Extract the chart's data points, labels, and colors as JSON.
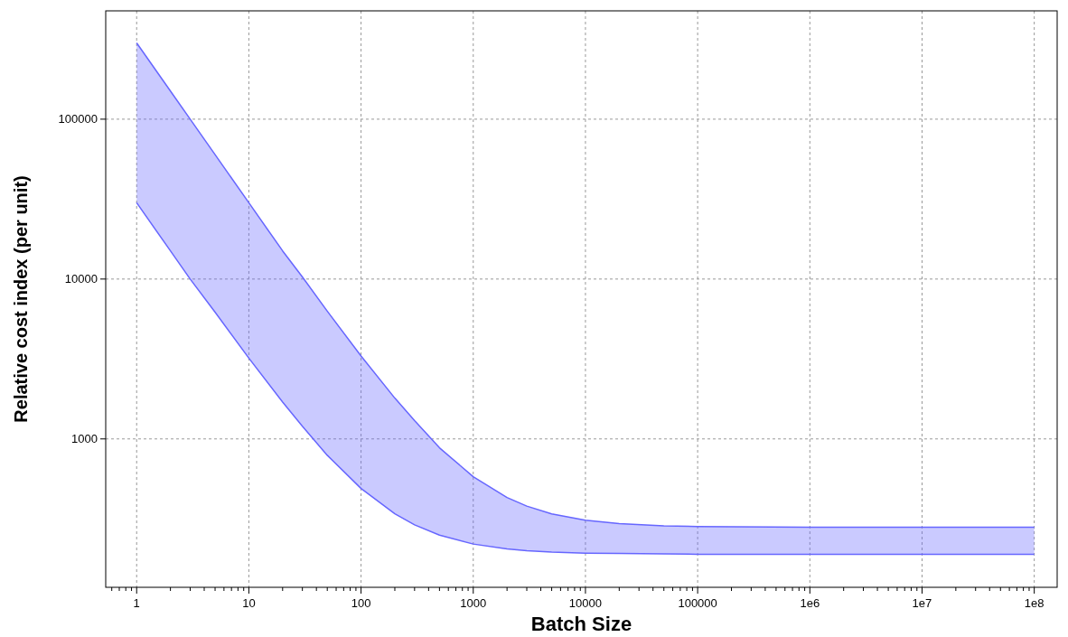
{
  "chart_data": {
    "type": "line",
    "xlabel": "Batch Size",
    "ylabel": "Relative cost index (per unit)",
    "log": "xy",
    "grid": true,
    "x": [
      1,
      2,
      3,
      5,
      10,
      20,
      30,
      50,
      100,
      200,
      300,
      500,
      1000,
      2000,
      3000,
      5000,
      10000,
      20000,
      50000,
      100000,
      1000000,
      10000000,
      100000000
    ],
    "series": [
      {
        "color": "#6666ff",
        "values": [
          300000,
          150000,
          100000,
          60000,
          30000,
          15000,
          10300,
          6300,
          3300,
          1800,
          1300,
          880,
          580,
          430,
          380,
          340,
          310,
          295,
          286,
          283,
          280,
          280,
          280
        ],
        "upper": [
          300000,
          150000,
          100000,
          60000,
          30000,
          15000,
          10300,
          6300,
          3300,
          1800,
          1300,
          880,
          580,
          430,
          380,
          340,
          310,
          295,
          286,
          283,
          280,
          280,
          280
        ],
        "lower": [
          30000,
          15000,
          10000,
          6200,
          3200,
          1700,
          1200,
          790,
          490,
          340,
          290,
          250,
          220,
          205,
          200,
          196,
          193,
          192,
          191,
          190,
          190,
          190,
          190
        ]
      },
      {
        "color": "#6666ff",
        "values": [
          30000,
          15000,
          10000,
          6200,
          3200,
          1700,
          1200,
          790,
          490,
          340,
          290,
          250,
          220,
          205,
          200,
          196,
          193,
          192,
          191,
          190,
          190,
          190,
          190
        ]
      }
    ],
    "xlim": [
      0.53,
      160000000
    ],
    "ylim": [
      118,
      476000
    ],
    "xticks": [
      {
        "value": 0.6,
        "label": null
      },
      {
        "value": 0.7,
        "label": null
      },
      {
        "value": 0.8,
        "label": null
      },
      {
        "value": 0.9,
        "label": null
      },
      1,
      {
        "value": 2,
        "label": null
      },
      {
        "value": 3,
        "label": null
      },
      {
        "value": 4,
        "label": null
      },
      {
        "value": 5,
        "label": null
      },
      {
        "value": 6,
        "label": null
      },
      {
        "value": 7,
        "label": null
      },
      {
        "value": 8,
        "label": null
      },
      {
        "value": 9,
        "label": null
      },
      10,
      {
        "value": 20,
        "label": null
      },
      {
        "value": 30,
        "label": null
      },
      {
        "value": 40,
        "label": null
      },
      {
        "value": 50,
        "label": null
      },
      {
        "value": 60,
        "label": null
      },
      {
        "value": 70,
        "label": null
      },
      {
        "value": 80,
        "label": null
      },
      {
        "value": 90,
        "label": null
      },
      100,
      {
        "value": 200,
        "label": null
      },
      {
        "value": 300,
        "label": null
      },
      {
        "value": 400,
        "label": null
      },
      {
        "value": 500,
        "label": null
      },
      {
        "value": 600,
        "label": null
      },
      {
        "value": 700,
        "label": null
      },
      {
        "value": 800,
        "label": null
      },
      {
        "value": 900,
        "label": null
      },
      1000,
      {
        "value": 2000,
        "label": null
      },
      {
        "value": 3000,
        "label": null
      },
      {
        "value": 4000,
        "label": null
      },
      {
        "value": 5000,
        "label": null
      },
      {
        "value": 6000,
        "label": null
      },
      {
        "value": 7000,
        "label": null
      },
      {
        "value": 8000,
        "label": null
      },
      {
        "value": 9000,
        "label": null
      },
      10000,
      {
        "value": 20000,
        "label": null
      },
      {
        "value": 30000,
        "label": null
      },
      {
        "value": 40000,
        "label": null
      },
      {
        "value": 50000,
        "label": null
      },
      {
        "value": 60000,
        "label": null
      },
      {
        "value": 70000,
        "label": null
      },
      {
        "value": 80000,
        "label": null
      },
      {
        "value": 90000,
        "label": null
      },
      100000,
      {
        "value": 200000,
        "label": null
      },
      {
        "value": 300000,
        "label": null
      },
      {
        "value": 400000,
        "label": null
      },
      {
        "value": 500000,
        "label": null
      },
      {
        "value": 600000,
        "label": null
      },
      {
        "value": 700000,
        "label": null
      },
      {
        "value": 800000,
        "label": null
      },
      {
        "value": 900000,
        "label": null
      },
      {
        "value": 1000000,
        "label": "1e6"
      },
      {
        "value": 2000000,
        "label": null
      },
      {
        "value": 3000000,
        "label": null
      },
      {
        "value": 4000000,
        "label": null
      },
      {
        "value": 5000000,
        "label": null
      },
      {
        "value": 6000000,
        "label": null
      },
      {
        "value": 7000000,
        "label": null
      },
      {
        "value": 8000000,
        "label": null
      },
      {
        "value": 9000000,
        "label": null
      },
      {
        "value": 10000000,
        "label": "1e7"
      },
      {
        "value": 20000000,
        "label": null
      },
      {
        "value": 30000000,
        "label": null
      },
      {
        "value": 40000000,
        "label": null
      },
      {
        "value": 50000000,
        "label": null
      },
      {
        "value": 60000000,
        "label": null
      },
      {
        "value": 70000000,
        "label": null
      },
      {
        "value": 80000000,
        "label": null
      },
      {
        "value": 90000000,
        "label": null
      },
      {
        "value": 100000000,
        "label": "1e8"
      }
    ],
    "yticks": [
      1000,
      10000,
      100000
    ]
  }
}
